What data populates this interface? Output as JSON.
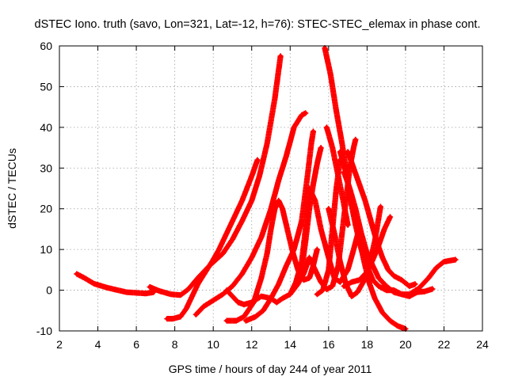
{
  "colors": {
    "series": "#ff0000",
    "axis": "#000000",
    "grid": "#a0a0a0"
  },
  "chart_data": {
    "type": "scatter",
    "title": "dSTEC Iono. truth (savo, Lon=321, Lat=-12, h=76): STEC-STEC_elemax in phase cont.",
    "xlabel": "GPS time / hours of day 244 of year 2011",
    "ylabel": "dSTEC  / TECUs",
    "xlim": [
      2,
      24
    ],
    "ylim": [
      -10,
      60
    ],
    "x_ticks": [
      2,
      4,
      6,
      8,
      10,
      12,
      14,
      16,
      18,
      20,
      22,
      24
    ],
    "y_ticks": [
      -10,
      0,
      10,
      20,
      30,
      40,
      50,
      60
    ],
    "grid": true,
    "legend": "none",
    "marker": "plus",
    "series": [
      {
        "points": [
          [
            2.9,
            4.0
          ],
          [
            3.3,
            3.0
          ],
          [
            3.8,
            1.6
          ],
          [
            4.5,
            0.6
          ],
          [
            5.5,
            -0.5
          ],
          [
            6.5,
            -0.8
          ],
          [
            6.9,
            -0.5
          ]
        ]
      },
      {
        "points": [
          [
            6.7,
            0.8
          ],
          [
            7.2,
            -0.2
          ],
          [
            7.8,
            -1.0
          ],
          [
            8.3,
            -1.2
          ],
          [
            8.7,
            0.2
          ],
          [
            9.2,
            3.0
          ],
          [
            9.8,
            6.0
          ],
          [
            10.5,
            9.0
          ],
          [
            11.0,
            12.5
          ],
          [
            11.5,
            17.0
          ],
          [
            12.0,
            22.0
          ],
          [
            12.4,
            28.0
          ],
          [
            12.8,
            36.0
          ],
          [
            13.2,
            47.0
          ],
          [
            13.5,
            57.5
          ]
        ]
      },
      {
        "points": [
          [
            7.6,
            -7.0
          ],
          [
            7.9,
            -7.0
          ],
          [
            8.3,
            -6.5
          ],
          [
            8.6,
            -4.5
          ],
          [
            8.9,
            -1.5
          ],
          [
            9.2,
            1.5
          ],
          [
            9.6,
            4.5
          ],
          [
            10.0,
            7.5
          ],
          [
            10.3,
            10.0
          ],
          [
            10.6,
            13.0
          ],
          [
            11.0,
            17.0
          ],
          [
            11.5,
            22.0
          ],
          [
            12.0,
            28.0
          ],
          [
            12.3,
            32.0
          ]
        ]
      },
      {
        "points": [
          [
            9.1,
            -6.0
          ],
          [
            9.5,
            -4.0
          ],
          [
            10.0,
            -2.5
          ],
          [
            10.5,
            -1.0
          ],
          [
            11.0,
            1.0
          ],
          [
            11.5,
            4.0
          ],
          [
            12.0,
            8.0
          ],
          [
            12.5,
            13.0
          ],
          [
            13.0,
            20.0
          ],
          [
            13.4,
            27.0
          ],
          [
            13.8,
            33.0
          ],
          [
            14.2,
            40.0
          ],
          [
            14.6,
            43.0
          ],
          [
            14.8,
            43.5
          ]
        ]
      },
      {
        "points": [
          [
            10.7,
            -7.5
          ],
          [
            11.2,
            -7.5
          ],
          [
            11.6,
            -6.5
          ],
          [
            12.1,
            -3.0
          ],
          [
            12.5,
            3.0
          ],
          [
            12.8,
            9.0
          ],
          [
            13.0,
            15.0
          ],
          [
            13.2,
            20.0
          ],
          [
            13.4,
            22.0
          ],
          [
            13.6,
            20.0
          ],
          [
            13.8,
            16.0
          ],
          [
            14.1,
            10.0
          ],
          [
            14.4,
            5.0
          ],
          [
            14.7,
            2.5
          ],
          [
            15.0,
            3.0
          ],
          [
            15.2,
            6.0
          ],
          [
            15.4,
            10.0
          ]
        ]
      },
      {
        "points": [
          [
            11.7,
            -7.5
          ],
          [
            12.2,
            -6.5
          ],
          [
            12.6,
            -5.0
          ],
          [
            13.0,
            -2.0
          ],
          [
            13.4,
            1.5
          ],
          [
            13.8,
            6.0
          ],
          [
            14.2,
            10.0
          ],
          [
            14.6,
            17.0
          ],
          [
            14.9,
            28.0
          ],
          [
            15.1,
            36.0
          ],
          [
            15.2,
            39.0
          ]
        ]
      },
      {
        "points": [
          [
            10.7,
            0.0
          ],
          [
            11.0,
            -1.5
          ],
          [
            11.3,
            -3.0
          ],
          [
            11.6,
            -3.5
          ],
          [
            12.0,
            -3.0
          ],
          [
            12.5,
            -1.5
          ],
          [
            13.0,
            -2.0
          ],
          [
            13.3,
            -3.0
          ],
          [
            13.6,
            -2.0
          ],
          [
            14.0,
            -1.0
          ],
          [
            14.3,
            2.0
          ],
          [
            14.6,
            7.0
          ],
          [
            14.8,
            15.0
          ],
          [
            15.0,
            25.0
          ],
          [
            15.3,
            22.0
          ],
          [
            15.6,
            15.0
          ],
          [
            16.0,
            8.0
          ],
          [
            16.3,
            3.0
          ],
          [
            16.6,
            2.0
          ],
          [
            17.0,
            5.0
          ],
          [
            17.3,
            10.0
          ],
          [
            17.5,
            13.5
          ]
        ]
      },
      {
        "points": [
          [
            14.0,
            -1.0
          ],
          [
            14.4,
            1.5
          ],
          [
            14.7,
            4.0
          ],
          [
            15.0,
            8.0
          ],
          [
            15.3,
            5.0
          ],
          [
            15.6,
            2.0
          ],
          [
            15.9,
            0.2
          ],
          [
            16.2,
            1.0
          ],
          [
            16.5,
            6.0
          ],
          [
            16.7,
            14.0
          ],
          [
            16.9,
            22.0
          ],
          [
            17.1,
            30.0
          ],
          [
            17.3,
            35.0
          ],
          [
            17.4,
            37.0
          ]
        ]
      },
      {
        "points": [
          [
            14.3,
            1.0
          ],
          [
            14.6,
            5.0
          ],
          [
            14.8,
            12.0
          ],
          [
            15.0,
            20.0
          ],
          [
            15.2,
            26.0
          ],
          [
            15.4,
            31.0
          ],
          [
            15.6,
            35.0
          ]
        ]
      },
      {
        "points": [
          [
            15.4,
            -1.0
          ],
          [
            15.7,
            0.0
          ],
          [
            16.0,
            5.0
          ],
          [
            16.2,
            15.0
          ],
          [
            16.4,
            25.0
          ],
          [
            16.6,
            32.0
          ]
        ]
      },
      {
        "points": [
          [
            15.8,
            59.5
          ],
          [
            16.1,
            53.0
          ],
          [
            16.4,
            44.0
          ],
          [
            16.7,
            36.0
          ],
          [
            16.9,
            30.0
          ],
          [
            17.1,
            23.0
          ],
          [
            17.4,
            16.0
          ],
          [
            17.7,
            10.0
          ],
          [
            18.0,
            6.0
          ],
          [
            18.3,
            2.5
          ],
          [
            18.6,
            1.0
          ],
          [
            19.0,
            0.0
          ],
          [
            19.4,
            0.0
          ],
          [
            19.8,
            -1.0
          ],
          [
            20.2,
            -1.5
          ],
          [
            20.6,
            -0.5
          ],
          [
            21.0,
            -0.3
          ],
          [
            21.4,
            0.3
          ]
        ]
      },
      {
        "points": [
          [
            16.8,
            29.0
          ],
          [
            17.1,
            25.0
          ],
          [
            17.4,
            20.0
          ],
          [
            17.7,
            14.0
          ],
          [
            18.0,
            9.0
          ],
          [
            18.3,
            6.0
          ],
          [
            18.6,
            3.0
          ],
          [
            19.0,
            1.0
          ],
          [
            19.4,
            -0.5
          ],
          [
            19.8,
            -1.0
          ],
          [
            20.2,
            -1.0
          ],
          [
            20.7,
            0.5
          ],
          [
            21.2,
            3.0
          ],
          [
            21.6,
            5.5
          ],
          [
            22.0,
            7.0
          ],
          [
            22.6,
            7.5
          ]
        ]
      },
      {
        "points": [
          [
            16.6,
            34.0
          ],
          [
            16.9,
            29.0
          ],
          [
            17.2,
            22.0
          ],
          [
            17.5,
            15.0
          ],
          [
            17.8,
            8.0
          ],
          [
            18.1,
            2.0
          ],
          [
            18.4,
            -2.0
          ],
          [
            18.8,
            -5.5
          ],
          [
            19.2,
            -7.5
          ],
          [
            19.6,
            -8.8
          ],
          [
            20.0,
            -9.5
          ]
        ]
      },
      {
        "points": [
          [
            16.0,
            20.0
          ],
          [
            16.3,
            14.0
          ],
          [
            16.6,
            7.0
          ],
          [
            16.9,
            1.5
          ],
          [
            17.2,
            -1.5
          ],
          [
            17.5,
            -0.5
          ],
          [
            17.8,
            2.0
          ],
          [
            18.1,
            6.0
          ],
          [
            18.4,
            12.0
          ],
          [
            18.7,
            20.5
          ]
        ]
      },
      {
        "points": [
          [
            16.8,
            1.0
          ],
          [
            17.2,
            2.0
          ],
          [
            17.6,
            2.5
          ],
          [
            18.0,
            4.5
          ],
          [
            18.3,
            7.5
          ],
          [
            18.6,
            11.0
          ],
          [
            18.9,
            15.0
          ],
          [
            19.2,
            18.0
          ]
        ]
      },
      {
        "points": [
          [
            17.0,
            34.0
          ],
          [
            17.3,
            30.0
          ],
          [
            17.6,
            26.0
          ],
          [
            17.9,
            22.0
          ],
          [
            18.2,
            17.0
          ],
          [
            18.5,
            12.0
          ],
          [
            18.8,
            8.0
          ],
          [
            19.1,
            5.0
          ],
          [
            19.4,
            3.5
          ],
          [
            19.8,
            2.5
          ],
          [
            20.2,
            1.0
          ],
          [
            20.5,
            1.5
          ]
        ]
      },
      {
        "points": [
          [
            15.9,
            40.0
          ],
          [
            16.2,
            35.0
          ],
          [
            16.5,
            28.0
          ],
          [
            16.8,
            21.0
          ],
          [
            17.0,
            16.0
          ]
        ]
      }
    ]
  }
}
